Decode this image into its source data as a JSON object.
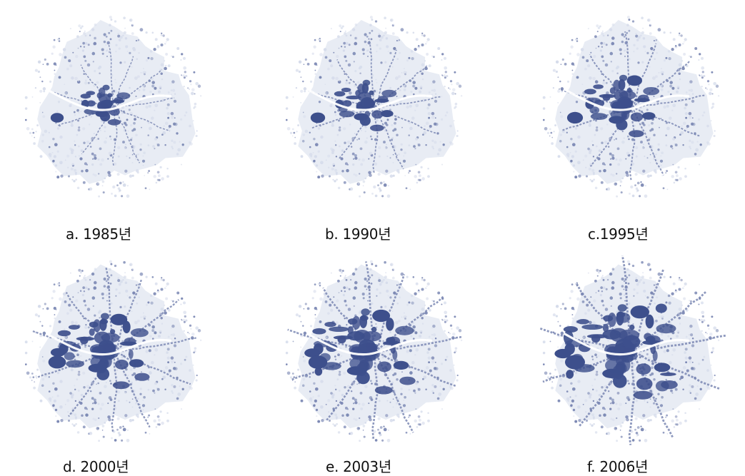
{
  "figure": {
    "colors": {
      "urban_core": "#3d4f8c",
      "urban_sprawl": "#7a87b3",
      "periphery": "#d6dceb",
      "background": "#ffffff"
    },
    "panels": [
      {
        "caption": "a. 1985년",
        "growth": 0.2
      },
      {
        "caption": "b. 1990년",
        "growth": 0.36
      },
      {
        "caption": "c.1995년",
        "growth": 0.52
      },
      {
        "caption": "d. 2000년",
        "growth": 0.72
      },
      {
        "caption": "e. 2003년",
        "growth": 0.86
      },
      {
        "caption": "f. 2006년",
        "growth": 1.0
      }
    ]
  }
}
